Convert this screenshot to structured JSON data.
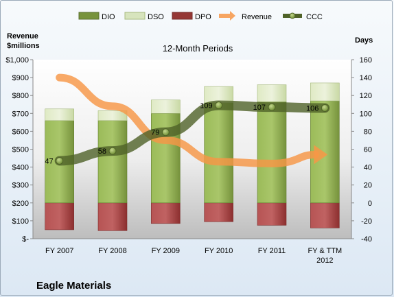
{
  "company": "Eagle Materials",
  "chart_data": {
    "type": "bar",
    "title": "12-Month Periods",
    "left_axis_label": [
      "Revenue",
      "$millions"
    ],
    "right_axis_label": "Days",
    "categories": [
      [
        "FY 2007"
      ],
      [
        "FY 2008"
      ],
      [
        "FY 2009"
      ],
      [
        "FY 2010"
      ],
      [
        "FY 2011"
      ],
      [
        "FY & TTM",
        "2012"
      ]
    ],
    "left_axis": {
      "range": [
        0,
        1000
      ],
      "ticks": [
        "$-",
        "$100",
        "$200",
        "$300",
        "$400",
        "$500",
        "$600",
        "$700",
        "$800",
        "$900",
        "$1,000"
      ]
    },
    "right_axis": {
      "range": [
        -40,
        160
      ],
      "ticks": [
        "-40",
        "-20",
        "0",
        "20",
        "40",
        "60",
        "80",
        "100",
        "120",
        "140",
        "160"
      ]
    },
    "legend_position": "top",
    "series": [
      {
        "name": "DIO",
        "kind": "stacked-bar",
        "axis": "right",
        "color": "#77933c",
        "values": [
          92,
          92,
          100,
          112,
          113,
          114
        ]
      },
      {
        "name": "DSO",
        "kind": "stacked-bar",
        "axis": "right",
        "color": "#d7e4bd",
        "values": [
          13,
          11,
          15,
          18,
          19,
          20
        ]
      },
      {
        "name": "DPO",
        "kind": "negative-bar",
        "axis": "right",
        "color": "#953735",
        "values": [
          -30,
          -31,
          -23,
          -21,
          -25,
          -28
        ]
      },
      {
        "name": "Revenue",
        "kind": "arrow",
        "axis": "left",
        "color": "#e46c0a",
        "values": [
          900,
          740,
          550,
          430,
          420,
          470
        ]
      },
      {
        "name": "CCC",
        "kind": "line",
        "axis": "right",
        "color": "#4f6228",
        "values": [
          47,
          58,
          79,
          109,
          107,
          106
        ],
        "labels": [
          "47",
          "58",
          "79",
          "109",
          "107",
          "106"
        ]
      }
    ]
  }
}
